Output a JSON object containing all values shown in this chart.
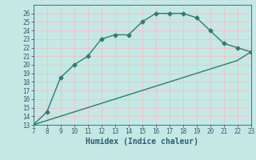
{
  "xlabel": "Humidex (Indice chaleur)",
  "x_upper": [
    7,
    8,
    9,
    10,
    11,
    12,
    13,
    14,
    15,
    16,
    17,
    18,
    19,
    20,
    21,
    22,
    23
  ],
  "y_upper": [
    13,
    14.5,
    18.5,
    20,
    21,
    23,
    23.5,
    23.5,
    25,
    26,
    26,
    26,
    25.5,
    24,
    22.5,
    22,
    21.5
  ],
  "x_lower": [
    7,
    8,
    9,
    10,
    11,
    12,
    13,
    14,
    15,
    16,
    17,
    18,
    19,
    20,
    21,
    22,
    23
  ],
  "y_lower": [
    13,
    13.5,
    14,
    14.5,
    15,
    15.5,
    16,
    16.5,
    17,
    17.5,
    18,
    18.5,
    19,
    19.5,
    20,
    20.5,
    21.5
  ],
  "line_color": "#2e7d6e",
  "marker": "D",
  "marker_size": 2.5,
  "bg_color": "#c5e8e5",
  "grid_color_major": "#e8c8c8",
  "grid_color_minor": "#e8c8c8",
  "text_color": "#2e5d6e",
  "xlim": [
    7,
    23
  ],
  "ylim": [
    13,
    27
  ],
  "xticks": [
    7,
    8,
    9,
    10,
    11,
    12,
    13,
    14,
    15,
    16,
    17,
    18,
    19,
    20,
    21,
    22,
    23
  ],
  "yticks": [
    13,
    14,
    15,
    16,
    17,
    18,
    19,
    20,
    21,
    22,
    23,
    24,
    25,
    26
  ],
  "xlabel_fontsize": 7,
  "tick_fontsize": 5.5
}
